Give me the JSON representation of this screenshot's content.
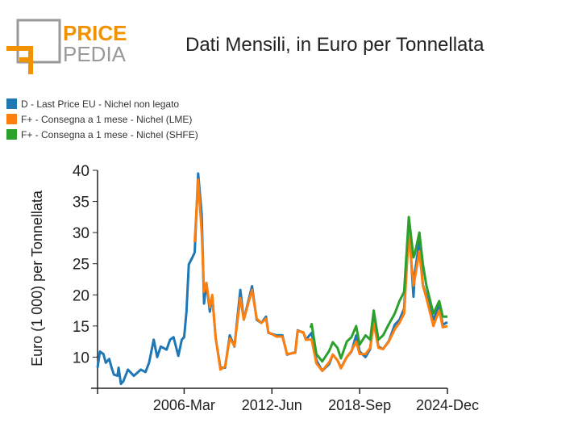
{
  "logo": {
    "text_top": "PRICE",
    "text_bottom": "PEDIA",
    "accent": "#f39200",
    "gray": "#999999"
  },
  "chart_data": {
    "type": "line",
    "title": "Dati Mensili, in Euro per Tonnellata",
    "xlabel": "",
    "ylabel": "Euro (1 000) per Tonnellata",
    "xlim": [
      "2000-01",
      "2024-12"
    ],
    "ylim": [
      5,
      40
    ],
    "yticks": [
      10,
      15,
      20,
      25,
      30,
      35,
      40
    ],
    "xticks": [
      {
        "date": "2000-01",
        "label": ""
      },
      {
        "date": "2006-03",
        "label": "2006-Mar"
      },
      {
        "date": "2012-06",
        "label": "2012-Jun"
      },
      {
        "date": "2018-09",
        "label": "2018-Sep"
      },
      {
        "date": "2024-12",
        "label": "2024-Dec"
      }
    ],
    "grid": false,
    "legend_position": "top-left",
    "series": [
      {
        "name": "D - Last Price EU - Nichel non legato",
        "color": "#1f77b4",
        "points": [
          [
            "2000-01",
            8.3
          ],
          [
            "2000-03",
            10.9
          ],
          [
            "2000-06",
            10.5
          ],
          [
            "2000-08",
            9.1
          ],
          [
            "2000-11",
            9.7
          ],
          [
            "2001-01",
            8.3
          ],
          [
            "2001-03",
            7.2
          ],
          [
            "2001-06",
            7.0
          ],
          [
            "2001-07",
            8.3
          ],
          [
            "2001-09",
            5.7
          ],
          [
            "2001-11",
            6.1
          ],
          [
            "2002-03",
            8.0
          ],
          [
            "2002-08",
            7.0
          ],
          [
            "2003-02",
            8.0
          ],
          [
            "2003-06",
            7.6
          ],
          [
            "2003-09",
            9.1
          ],
          [
            "2004-01",
            12.8
          ],
          [
            "2004-04",
            10.0
          ],
          [
            "2004-07",
            11.7
          ],
          [
            "2004-12",
            11.2
          ],
          [
            "2005-03",
            12.8
          ],
          [
            "2005-06",
            13.2
          ],
          [
            "2005-10",
            10.2
          ],
          [
            "2006-01",
            12.8
          ],
          [
            "2006-03",
            13.2
          ],
          [
            "2006-05",
            17.3
          ],
          [
            "2006-07",
            24.9
          ],
          [
            "2006-10",
            26.0
          ],
          [
            "2006-12",
            26.8
          ],
          [
            "2007-03",
            39.5
          ],
          [
            "2007-06",
            32.9
          ],
          [
            "2007-08",
            18.6
          ],
          [
            "2007-10",
            21.9
          ],
          [
            "2008-01",
            17.3
          ],
          [
            "2008-03",
            19.9
          ],
          [
            "2008-06",
            13.0
          ],
          [
            "2008-10",
            8.3
          ],
          [
            "2009-02",
            8.3
          ],
          [
            "2009-06",
            13.5
          ],
          [
            "2009-10",
            11.7
          ],
          [
            "2010-03",
            20.8
          ],
          [
            "2010-06",
            16.0
          ],
          [
            "2011-01",
            21.4
          ],
          [
            "2011-05",
            16.0
          ],
          [
            "2011-09",
            15.5
          ],
          [
            "2012-01",
            16.5
          ],
          [
            "2012-03",
            13.9
          ],
          [
            "2012-10",
            13.5
          ],
          [
            "2013-03",
            13.5
          ],
          [
            "2013-07",
            10.4
          ],
          [
            "2014-02",
            10.8
          ],
          [
            "2014-04",
            14.3
          ],
          [
            "2014-09",
            13.9
          ],
          [
            "2014-11",
            12.8
          ],
          [
            "2015-04",
            13.9
          ],
          [
            "2015-08",
            9.5
          ],
          [
            "2016-01",
            7.8
          ],
          [
            "2016-07",
            8.9
          ],
          [
            "2016-10",
            10.4
          ],
          [
            "2017-02",
            9.5
          ],
          [
            "2017-05",
            8.3
          ],
          [
            "2017-10",
            10.0
          ],
          [
            "2018-02",
            10.9
          ],
          [
            "2018-06",
            13.5
          ],
          [
            "2018-09",
            10.9
          ],
          [
            "2019-02",
            10.0
          ],
          [
            "2019-06",
            11.3
          ],
          [
            "2019-09",
            16.0
          ],
          [
            "2020-01",
            11.7
          ],
          [
            "2020-05",
            11.3
          ],
          [
            "2020-10",
            12.6
          ],
          [
            "2021-03",
            15.2
          ],
          [
            "2021-07",
            16.0
          ],
          [
            "2021-11",
            17.8
          ],
          [
            "2022-03",
            31.6
          ],
          [
            "2022-07",
            19.7
          ],
          [
            "2022-08",
            23.4
          ],
          [
            "2022-12",
            28.6
          ],
          [
            "2023-03",
            21.6
          ],
          [
            "2023-06",
            19.9
          ],
          [
            "2023-12",
            16.0
          ],
          [
            "2024-05",
            18.2
          ],
          [
            "2024-08",
            15.2
          ],
          [
            "2024-12",
            15.6
          ]
        ]
      },
      {
        "name": "F+ - Consegna a 1 mese - Nichel (LME)",
        "color": "#ff7f0e",
        "points": [
          [
            "2006-12",
            28.5
          ],
          [
            "2007-03",
            38.5
          ],
          [
            "2007-06",
            30.0
          ],
          [
            "2007-08",
            20.5
          ],
          [
            "2007-10",
            21.9
          ],
          [
            "2008-01",
            18.0
          ],
          [
            "2008-03",
            20.0
          ],
          [
            "2008-06",
            13.0
          ],
          [
            "2008-10",
            8.0
          ],
          [
            "2009-02",
            8.5
          ],
          [
            "2009-06",
            13.0
          ],
          [
            "2009-10",
            11.8
          ],
          [
            "2010-03",
            19.5
          ],
          [
            "2010-06",
            16.0
          ],
          [
            "2011-01",
            20.8
          ],
          [
            "2011-05",
            16.2
          ],
          [
            "2011-09",
            15.5
          ],
          [
            "2012-01",
            16.2
          ],
          [
            "2012-03",
            14.0
          ],
          [
            "2012-10",
            13.3
          ],
          [
            "2013-03",
            13.3
          ],
          [
            "2013-07",
            10.5
          ],
          [
            "2014-02",
            10.7
          ],
          [
            "2014-04",
            14.2
          ],
          [
            "2014-09",
            14.0
          ],
          [
            "2014-11",
            12.8
          ],
          [
            "2015-04",
            12.8
          ],
          [
            "2015-08",
            9.0
          ],
          [
            "2016-01",
            7.8
          ],
          [
            "2016-07",
            9.2
          ],
          [
            "2016-10",
            10.4
          ],
          [
            "2017-02",
            9.5
          ],
          [
            "2017-05",
            8.2
          ],
          [
            "2017-10",
            10.0
          ],
          [
            "2018-02",
            11.0
          ],
          [
            "2018-06",
            12.5
          ],
          [
            "2018-09",
            10.5
          ],
          [
            "2019-02",
            10.5
          ],
          [
            "2019-06",
            11.5
          ],
          [
            "2019-09",
            15.5
          ],
          [
            "2020-01",
            11.5
          ],
          [
            "2020-05",
            11.3
          ],
          [
            "2020-10",
            12.5
          ],
          [
            "2021-03",
            14.5
          ],
          [
            "2021-07",
            15.5
          ],
          [
            "2021-11",
            17.0
          ],
          [
            "2022-03",
            30.0
          ],
          [
            "2022-07",
            21.5
          ],
          [
            "2022-08",
            22.5
          ],
          [
            "2022-12",
            27.0
          ],
          [
            "2023-03",
            21.5
          ],
          [
            "2023-06",
            19.5
          ],
          [
            "2023-12",
            15.0
          ],
          [
            "2024-05",
            17.5
          ],
          [
            "2024-08",
            14.8
          ],
          [
            "2024-12",
            15.0
          ]
        ]
      },
      {
        "name": "F+ - Consegna a 1 mese - Nichel (SHFE)",
        "color": "#2ca02c",
        "points": [
          [
            "2015-03",
            14.7
          ],
          [
            "2015-04",
            15.3
          ],
          [
            "2015-08",
            10.5
          ],
          [
            "2016-01",
            9.3
          ],
          [
            "2016-07",
            11.0
          ],
          [
            "2016-10",
            12.4
          ],
          [
            "2017-02",
            11.5
          ],
          [
            "2017-05",
            9.8
          ],
          [
            "2017-10",
            12.5
          ],
          [
            "2018-02",
            13.2
          ],
          [
            "2018-06",
            15.0
          ],
          [
            "2018-09",
            12.0
          ],
          [
            "2019-02",
            13.5
          ],
          [
            "2019-06",
            12.8
          ],
          [
            "2019-09",
            17.5
          ],
          [
            "2020-01",
            12.8
          ],
          [
            "2020-05",
            13.5
          ],
          [
            "2020-10",
            15.3
          ],
          [
            "2021-03",
            17.0
          ],
          [
            "2021-07",
            19.0
          ],
          [
            "2021-11",
            20.5
          ],
          [
            "2022-03",
            32.5
          ],
          [
            "2022-07",
            26.0
          ],
          [
            "2022-08",
            26.5
          ],
          [
            "2022-12",
            30.0
          ],
          [
            "2023-03",
            25.0
          ],
          [
            "2023-06",
            21.5
          ],
          [
            "2023-12",
            17.0
          ],
          [
            "2024-05",
            19.0
          ],
          [
            "2024-08",
            16.5
          ],
          [
            "2024-12",
            16.5
          ]
        ]
      }
    ]
  }
}
